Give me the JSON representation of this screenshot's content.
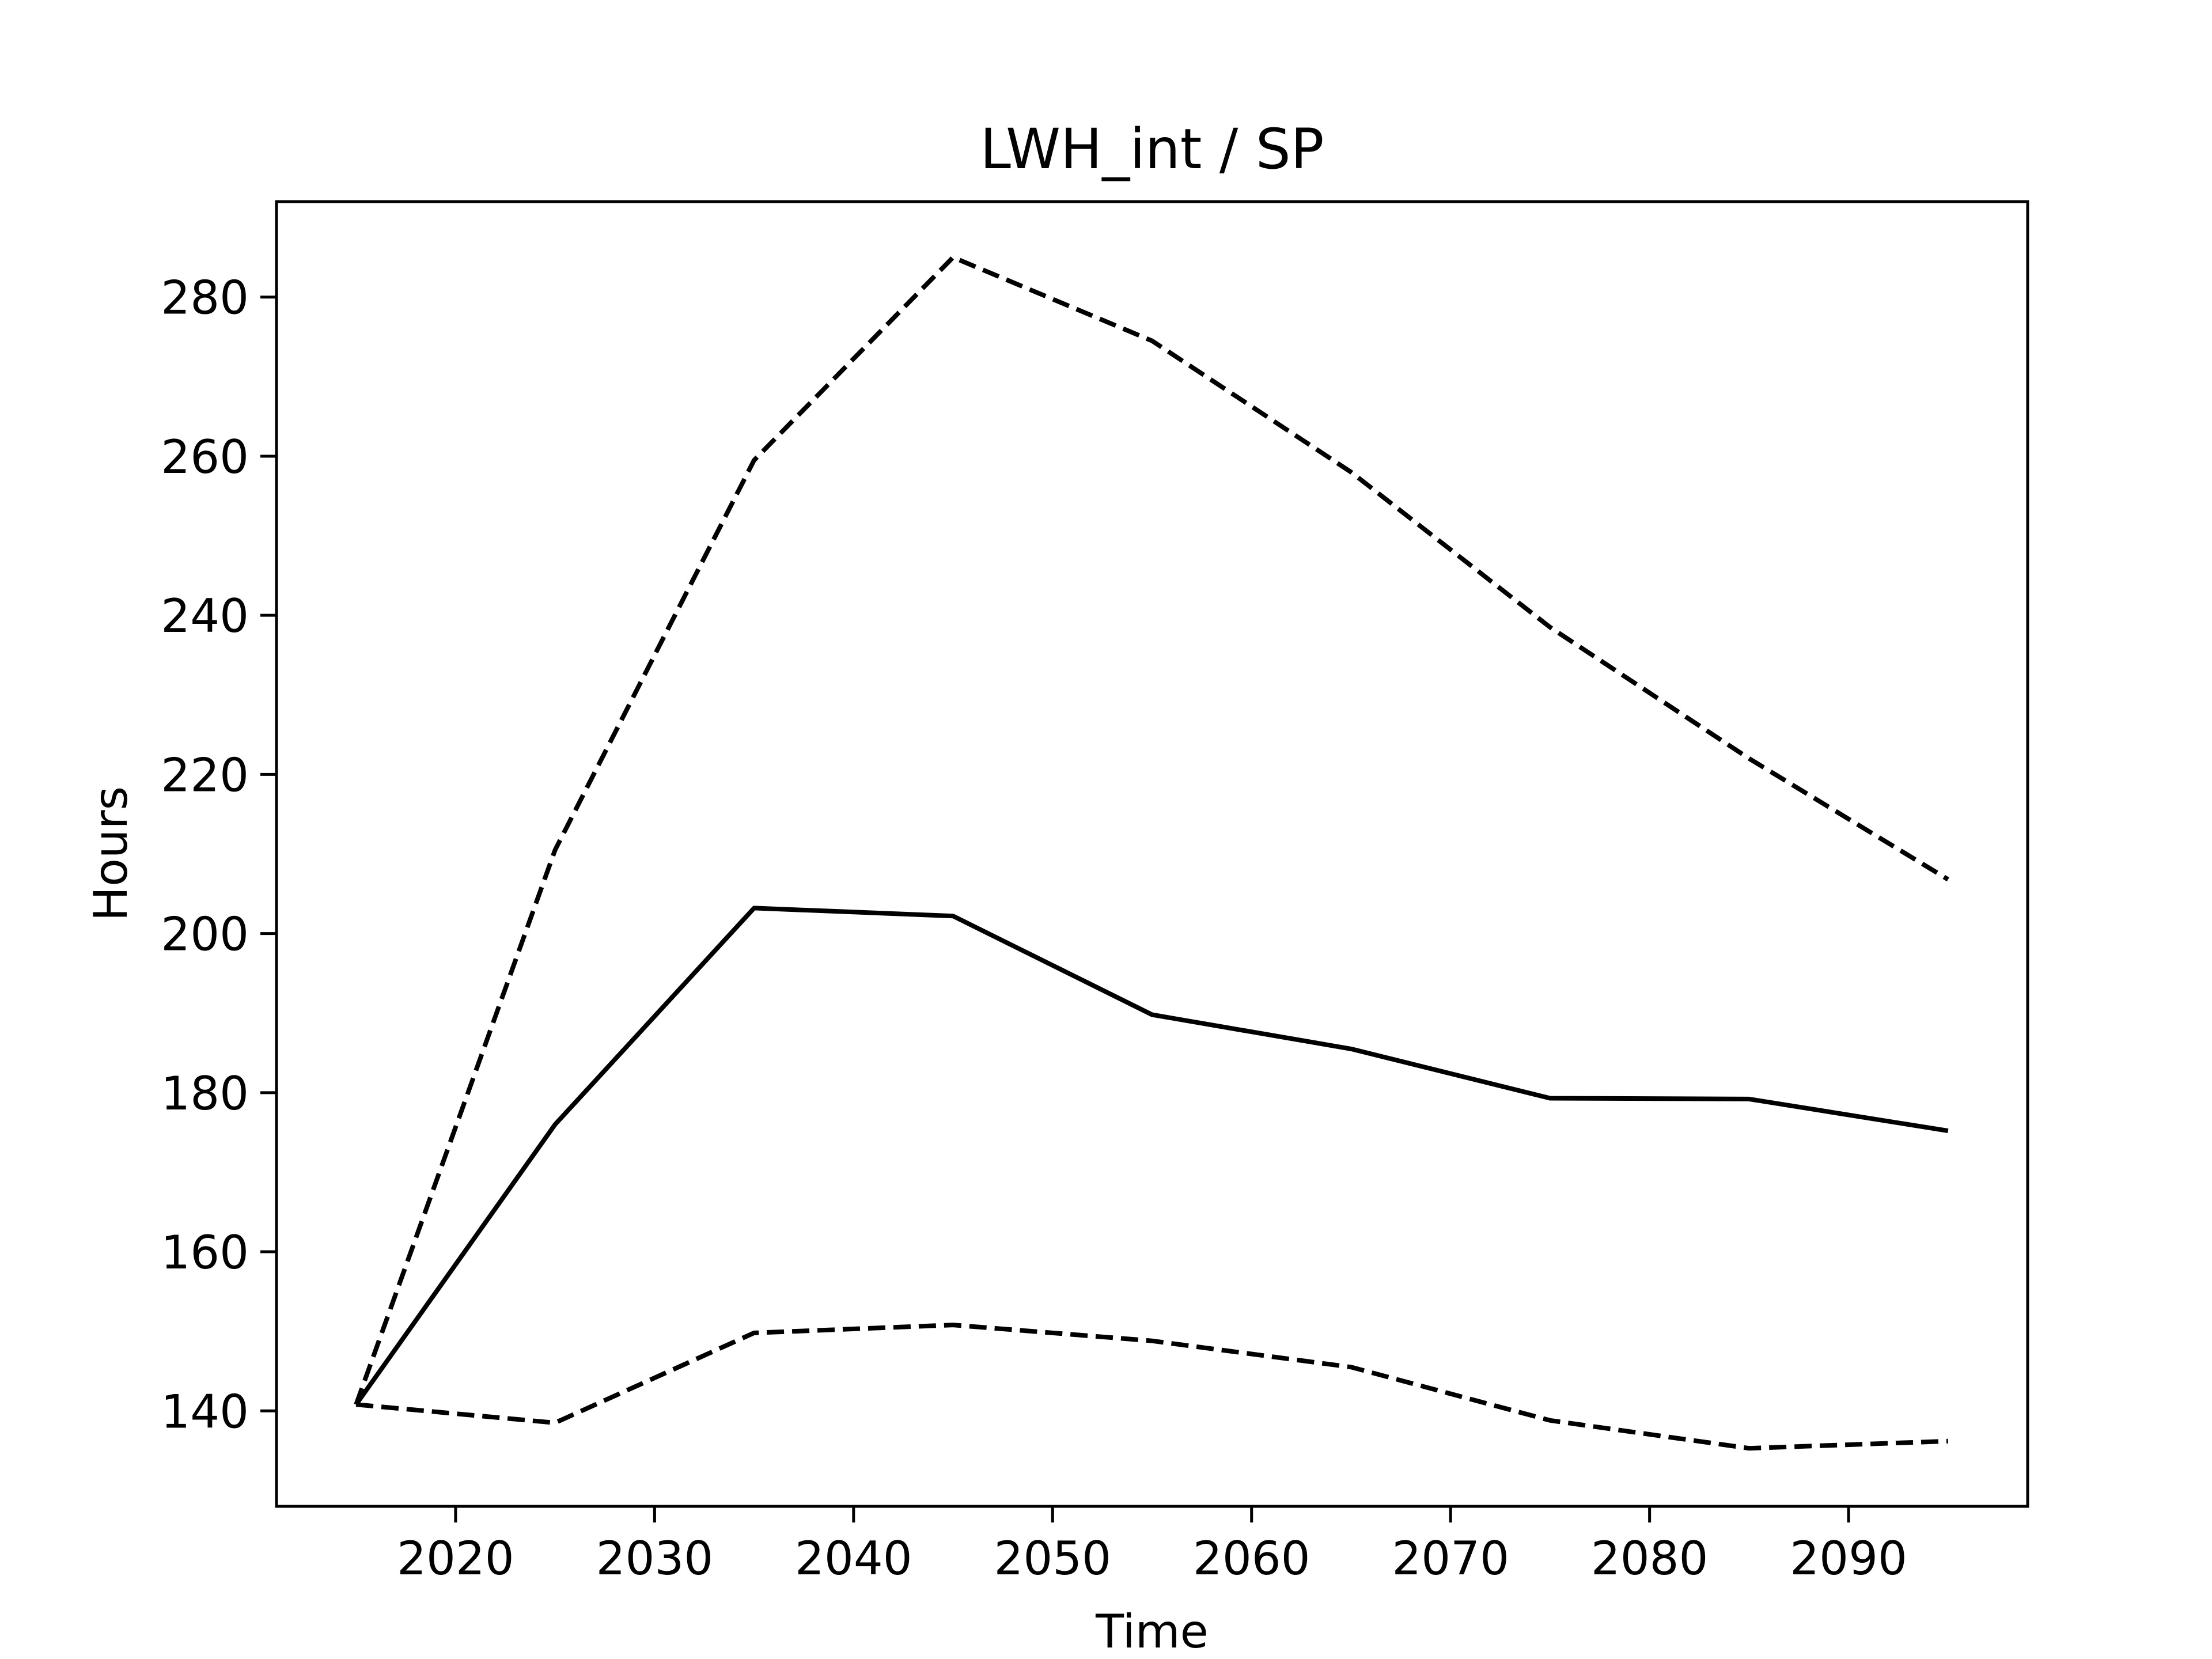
{
  "chart_data": {
    "type": "line",
    "title": "LWH_int / SP",
    "xlabel": "Time",
    "ylabel": "Hours",
    "xlim": [
      2011,
      2099
    ],
    "ylim": [
      128,
      292
    ],
    "xticks": [
      2020,
      2030,
      2040,
      2050,
      2060,
      2070,
      2080,
      2090
    ],
    "yticks": [
      140,
      160,
      180,
      200,
      220,
      240,
      260,
      280
    ],
    "grid": false,
    "x": [
      2015,
      2025,
      2035,
      2045,
      2055,
      2065,
      2075,
      2085,
      2095
    ],
    "series": [
      {
        "style": "dashed",
        "values": [
          140.8,
          210.5,
          259.5,
          285.0,
          274.5,
          258.0,
          238.5,
          222.0,
          206.8
        ]
      },
      {
        "style": "solid",
        "values": [
          140.8,
          176.0,
          203.2,
          202.2,
          189.8,
          185.5,
          179.3,
          179.2,
          175.2
        ]
      },
      {
        "style": "dashed",
        "values": [
          140.8,
          138.5,
          149.8,
          150.8,
          148.8,
          145.5,
          138.8,
          135.3,
          136.2
        ]
      }
    ],
    "colors": {
      "line": "#000000",
      "frame": "#000000",
      "background": "#ffffff"
    }
  }
}
